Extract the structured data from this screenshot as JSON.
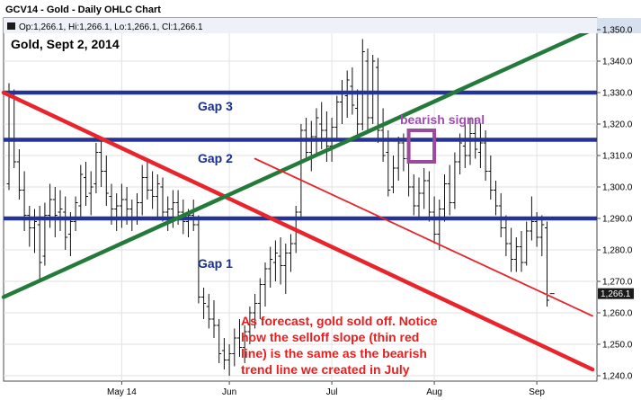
{
  "header": {
    "title": "GCV14 - Gold - Daily OHLC Chart",
    "ohlc_readout": "Op:1,266.1, Hi:1,266.1, Lo:1,266.1, Cl:1,266.1"
  },
  "chart_data": {
    "type": "ohlc",
    "subtitle": "Gold, Sept 2, 2014",
    "ylim": [
      1238,
      1353
    ],
    "y_ticks": [
      1240,
      1250,
      1260,
      1270,
      1280,
      1290,
      1300,
      1310,
      1320,
      1330,
      1340,
      1350
    ],
    "y_tick_labels": [
      "1,240.0",
      "1,250.0",
      "1,260.0",
      "1,270.0",
      "1,280.0",
      "1,290.0",
      "1,300.0",
      "1,310.0",
      "1,320.0",
      "1,330.0",
      "1,340.0",
      "1,350.0"
    ],
    "x_labels": [
      "May 14",
      "Jun",
      "Jul",
      "Aug",
      "Sep"
    ],
    "x_label_bar_index": [
      22,
      43,
      63,
      83,
      103
    ],
    "grid": true,
    "last_price_label": "1,266.1",
    "bars": [
      [
        1301,
        1333,
        1299,
        1330
      ],
      [
        1329,
        1331,
        1306,
        1308
      ],
      [
        1308,
        1312,
        1296,
        1299
      ],
      [
        1299,
        1305,
        1286,
        1291
      ],
      [
        1291,
        1294,
        1281,
        1287
      ],
      [
        1287,
        1293,
        1279,
        1289
      ],
      [
        1288,
        1294,
        1270,
        1276
      ],
      [
        1278,
        1295,
        1275,
        1291
      ],
      [
        1291,
        1301,
        1287,
        1296
      ],
      [
        1296,
        1300,
        1284,
        1291
      ],
      [
        1292,
        1299,
        1286,
        1293
      ],
      [
        1292,
        1297,
        1280,
        1284
      ],
      [
        1285,
        1292,
        1278,
        1289
      ],
      [
        1289,
        1297,
        1286,
        1295
      ],
      [
        1294,
        1307,
        1290,
        1304
      ],
      [
        1303,
        1308,
        1294,
        1297
      ],
      [
        1298,
        1305,
        1291,
        1300
      ],
      [
        1301,
        1314,
        1298,
        1311
      ],
      [
        1311,
        1316,
        1300,
        1305
      ],
      [
        1305,
        1310,
        1294,
        1298
      ],
      [
        1297,
        1301,
        1288,
        1293
      ],
      [
        1293,
        1298,
        1286,
        1294
      ],
      [
        1294,
        1301,
        1287,
        1296
      ],
      [
        1296,
        1300,
        1288,
        1293
      ],
      [
        1293,
        1296,
        1286,
        1290
      ],
      [
        1290,
        1298,
        1288,
        1295
      ],
      [
        1295,
        1307,
        1291,
        1303
      ],
      [
        1303,
        1309,
        1296,
        1299
      ],
      [
        1299,
        1305,
        1293,
        1297
      ],
      [
        1297,
        1304,
        1290,
        1301
      ],
      [
        1300,
        1303,
        1289,
        1292
      ],
      [
        1292,
        1297,
        1286,
        1293
      ],
      [
        1293,
        1299,
        1287,
        1295
      ],
      [
        1295,
        1299,
        1288,
        1292
      ],
      [
        1292,
        1296,
        1285,
        1289
      ],
      [
        1289,
        1293,
        1284,
        1291
      ],
      [
        1291,
        1296,
        1286,
        1288
      ],
      [
        1288,
        1291,
        1263,
        1265
      ],
      [
        1265,
        1268,
        1258,
        1263
      ],
      [
        1262,
        1266,
        1255,
        1258
      ],
      [
        1258,
        1264,
        1252,
        1256
      ],
      [
        1256,
        1258,
        1244,
        1247
      ],
      [
        1248,
        1252,
        1242,
        1245
      ],
      [
        1245,
        1250,
        1240,
        1247
      ],
      [
        1247,
        1255,
        1243,
        1252
      ],
      [
        1252,
        1258,
        1246,
        1249
      ],
      [
        1249,
        1256,
        1244,
        1254
      ],
      [
        1254,
        1262,
        1250,
        1260
      ],
      [
        1260,
        1266,
        1255,
        1263
      ],
      [
        1263,
        1271,
        1258,
        1269
      ],
      [
        1269,
        1276,
        1262,
        1274
      ],
      [
        1274,
        1281,
        1268,
        1277
      ],
      [
        1276,
        1283,
        1270,
        1279
      ],
      [
        1278,
        1284,
        1269,
        1275
      ],
      [
        1275,
        1282,
        1266,
        1279
      ],
      [
        1279,
        1285,
        1273,
        1282
      ],
      [
        1282,
        1294,
        1279,
        1292
      ],
      [
        1292,
        1320,
        1290,
        1318
      ],
      [
        1318,
        1322,
        1309,
        1311
      ],
      [
        1311,
        1321,
        1305,
        1316
      ],
      [
        1316,
        1325,
        1310,
        1322
      ],
      [
        1320,
        1327,
        1312,
        1318
      ],
      [
        1318,
        1324,
        1308,
        1313
      ],
      [
        1313,
        1322,
        1308,
        1319
      ],
      [
        1319,
        1329,
        1315,
        1327
      ],
      [
        1327,
        1334,
        1320,
        1330
      ],
      [
        1329,
        1337,
        1322,
        1334
      ],
      [
        1332,
        1338,
        1323,
        1326
      ],
      [
        1325,
        1331,
        1316,
        1320
      ],
      [
        1320,
        1347,
        1318,
        1343
      ],
      [
        1340,
        1344,
        1318,
        1322
      ],
      [
        1322,
        1342,
        1320,
        1340
      ],
      [
        1338,
        1341,
        1314,
        1318
      ],
      [
        1318,
        1325,
        1308,
        1310
      ],
      [
        1311,
        1318,
        1297,
        1299
      ],
      [
        1300,
        1310,
        1298,
        1306
      ],
      [
        1306,
        1316,
        1302,
        1314
      ],
      [
        1314,
        1317,
        1305,
        1309
      ],
      [
        1309,
        1312,
        1297,
        1300
      ],
      [
        1300,
        1304,
        1291,
        1294
      ],
      [
        1294,
        1303,
        1290,
        1298
      ],
      [
        1298,
        1306,
        1293,
        1302
      ],
      [
        1302,
        1305,
        1289,
        1292
      ],
      [
        1292,
        1297,
        1282,
        1285
      ],
      [
        1285,
        1296,
        1280,
        1293
      ],
      [
        1293,
        1304,
        1289,
        1301
      ],
      [
        1301,
        1307,
        1291,
        1295
      ],
      [
        1295,
        1311,
        1293,
        1308
      ],
      [
        1308,
        1317,
        1304,
        1314
      ],
      [
        1313,
        1320,
        1306,
        1310
      ],
      [
        1310,
        1322,
        1307,
        1317
      ],
      [
        1317,
        1322,
        1309,
        1312
      ],
      [
        1311,
        1320,
        1306,
        1314
      ],
      [
        1314,
        1318,
        1302,
        1305
      ],
      [
        1305,
        1310,
        1296,
        1299
      ],
      [
        1299,
        1302,
        1291,
        1294
      ],
      [
        1294,
        1298,
        1284,
        1287
      ],
      [
        1287,
        1291,
        1278,
        1282
      ],
      [
        1282,
        1287,
        1273,
        1277
      ],
      [
        1277,
        1284,
        1273,
        1281
      ],
      [
        1281,
        1286,
        1273,
        1276
      ],
      [
        1276,
        1289,
        1275,
        1286
      ],
      [
        1286,
        1297,
        1283,
        1289
      ],
      [
        1289,
        1292,
        1281,
        1284
      ],
      [
        1284,
        1291,
        1278,
        1288
      ],
      [
        1287,
        1289,
        1262,
        1264
      ],
      [
        1266.1,
        1266.1,
        1266.1,
        1266.1
      ]
    ],
    "gap_lines": [
      1330,
      1315,
      1290
    ],
    "trend_lines": [
      {
        "name": "bearish-trend-line",
        "color": "#e8242c",
        "from": [
          0,
          1330
        ],
        "to": [
          107,
          1242
        ]
      },
      {
        "name": "support-trend-line",
        "color": "#237a3a",
        "from": [
          0,
          1265
        ],
        "to": [
          107,
          1350
        ]
      },
      {
        "name": "selloff-slope-line",
        "color": "#e8242c",
        "from": [
          48,
          1309
        ],
        "to": [
          107,
          1259
        ]
      }
    ],
    "signal_box": {
      "from_bar": 78,
      "to_bar": 83,
      "low": 1308,
      "high": 1318,
      "color": "#9b4a9f"
    },
    "annotations": {
      "gap3": "Gap 3",
      "gap2": "Gap 2",
      "gap1": "Gap 1",
      "bearish_signal": "bearish signal",
      "note_lines": [
        "As forecast, gold sold off. Notice",
        "how the selloff slope (thin red",
        "line) is the same as the bearish",
        "trend line we created in July"
      ]
    }
  }
}
